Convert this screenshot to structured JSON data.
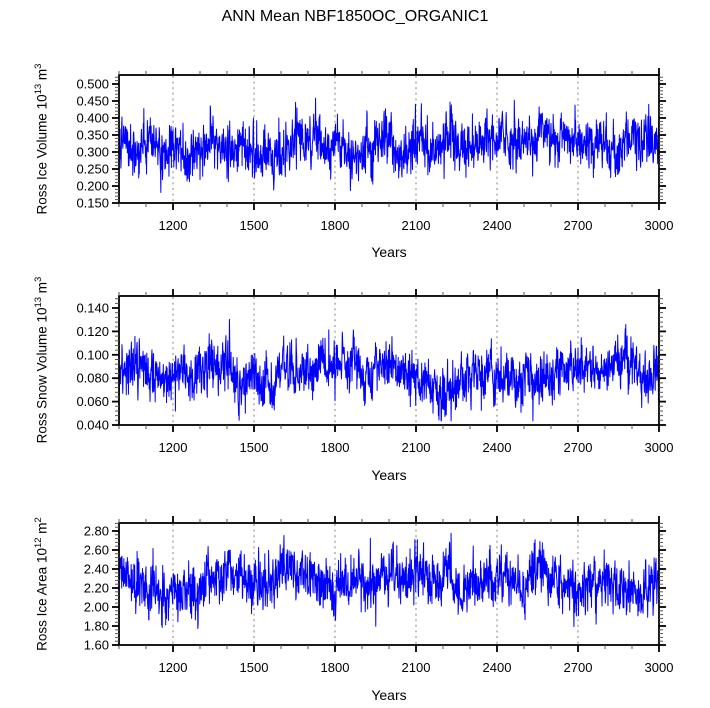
{
  "title": "ANN Mean NBF1850OC_ORGANIC1",
  "colors": {
    "series": "#0000ff",
    "grid": "#989898",
    "axis": "#000000",
    "minor_tick": "#555555",
    "background": "#ffffff"
  },
  "x_axis": {
    "label": "Years",
    "min": 1000,
    "max": 3000,
    "major_tick_labels": [
      "1200",
      "1500",
      "1800",
      "2100",
      "2400",
      "2700",
      "3000"
    ],
    "major_tick_values": [
      1200,
      1500,
      1800,
      2100,
      2400,
      2700,
      3000
    ],
    "minor_step": 100,
    "grid_values": [
      1200,
      1500,
      1800,
      2100,
      2400,
      2700
    ],
    "grid_style": "dashed"
  },
  "chart_data": [
    {
      "type": "line",
      "name": "ross-ice-volume",
      "ylabel": {
        "pre": "Ross Ice Volume 10",
        "sup1": "13",
        "mid": " m",
        "sup2": "3"
      },
      "xlabel": "Years",
      "y_min": 0.15,
      "y_max": 0.5265,
      "y_tick_labels": [
        "0.500",
        "0.450",
        "0.400",
        "0.350",
        "0.300",
        "0.250",
        "0.200",
        "0.150"
      ],
      "y_tick_values": [
        0.5,
        0.45,
        0.4,
        0.35,
        0.3,
        0.25,
        0.2,
        0.15
      ],
      "y_minor_step": 0.01,
      "x_start": 1000,
      "x_end": 3000,
      "x_step": 1,
      "series_summary": {
        "mean": 0.32,
        "typical_band": [
          0.25,
          0.4
        ],
        "observed_min": 0.18,
        "observed_max": 0.46
      },
      "gen": {
        "seed": 101,
        "mean": 0.32,
        "ar_fast": 0.28,
        "sigma_fast": 0.035,
        "ar_slow": 0.975,
        "sigma_slow": 0.0052,
        "clip_min": 0.157,
        "clip_max": 0.517
      }
    },
    {
      "type": "line",
      "name": "ross-snow-volume",
      "ylabel": {
        "pre": "Ross Snow Volume 10",
        "sup1": "13",
        "mid": " m",
        "sup2": "3"
      },
      "xlabel": "Years",
      "y_min": 0.04,
      "y_max": 0.1503,
      "y_tick_labels": [
        "0.140",
        "0.120",
        "0.100",
        "0.080",
        "0.060",
        "0.040"
      ],
      "y_tick_values": [
        0.14,
        0.12,
        0.1,
        0.08,
        0.06,
        0.04
      ],
      "y_minor_step": 0.004,
      "x_start": 1000,
      "x_end": 3000,
      "x_step": 1,
      "series_summary": {
        "mean": 0.085,
        "typical_band": [
          0.065,
          0.11
        ],
        "observed_min": 0.048,
        "observed_max": 0.128
      },
      "gen": {
        "seed": 202,
        "mean": 0.0855,
        "ar_fast": 0.28,
        "sigma_fast": 0.0103,
        "ar_slow": 0.975,
        "sigma_slow": 0.00155,
        "clip_min": 0.0435,
        "clip_max": 0.1465
      }
    },
    {
      "type": "line",
      "name": "ross-ice-area",
      "ylabel": {
        "pre": "Ross Ice Area 10",
        "sup1": "12",
        "mid": " m",
        "sup2": "2"
      },
      "xlabel": "Years",
      "y_min": 1.6,
      "y_max": 2.884,
      "y_tick_labels": [
        "2.80",
        "2.60",
        "2.40",
        "2.20",
        "2.00",
        "1.80",
        "1.60"
      ],
      "y_tick_values": [
        2.8,
        2.6,
        2.4,
        2.2,
        2.0,
        1.8,
        1.6
      ],
      "y_minor_step": 0.04,
      "x_start": 1000,
      "x_end": 3000,
      "x_step": 1,
      "series_summary": {
        "mean": 2.26,
        "typical_band": [
          2.0,
          2.55
        ],
        "observed_min": 1.78,
        "observed_max": 2.75
      },
      "gen": {
        "seed": 303,
        "mean": 2.255,
        "ar_fast": 0.28,
        "sigma_fast": 0.132,
        "ar_slow": 0.975,
        "sigma_slow": 0.0195,
        "clip_min": 1.635,
        "clip_max": 2.855
      }
    }
  ]
}
